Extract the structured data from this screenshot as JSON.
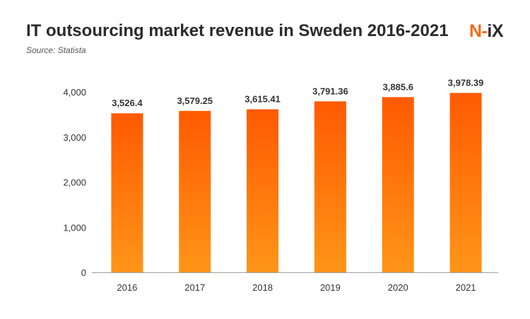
{
  "header": {
    "title": "IT outsourcing market revenue in Sweden 2016-2021",
    "source": "Source: Statista",
    "logo": {
      "n": "N",
      "dash": "-",
      "rest": "iX"
    }
  },
  "colors": {
    "bar_top": "#ff5a00",
    "bar_bottom": "#ff9518",
    "axis_line": "#9e9e9e",
    "text": "#333333",
    "brand": "#f26a1b"
  },
  "chart_data": {
    "type": "bar",
    "title": "IT outsourcing market revenue in Sweden 2016-2021",
    "categories": [
      "2016",
      "2017",
      "2018",
      "2019",
      "2020",
      "2021"
    ],
    "values": [
      3526.4,
      3579.25,
      3615.41,
      3791.36,
      3885.6,
      3978.39
    ],
    "data_labels": [
      "3,526.4",
      "3,579.25",
      "3,615.41",
      "3,791.36",
      "3,885.6",
      "3,978.39"
    ],
    "y_ticks": [
      0,
      1000,
      2000,
      3000,
      4000
    ],
    "y_tick_labels": [
      "0",
      "1,000",
      "2,000",
      "3,000",
      "4,000"
    ],
    "ylim": [
      0,
      4000
    ],
    "xlabel": "",
    "ylabel": "",
    "grid": false,
    "legend": "none"
  }
}
